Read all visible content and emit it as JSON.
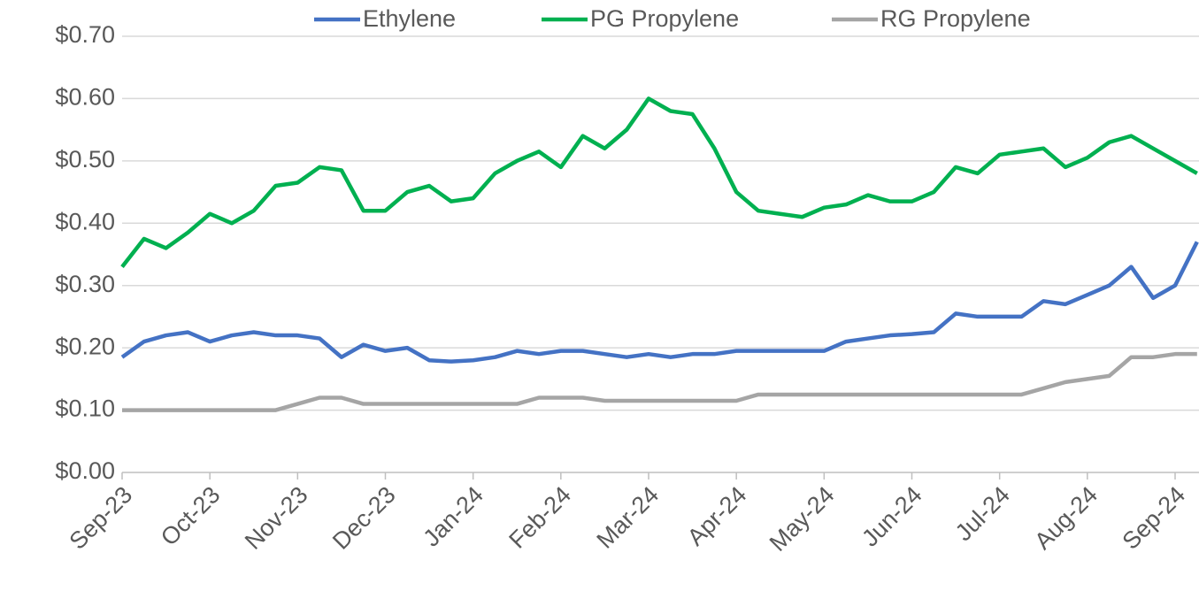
{
  "chart_data": {
    "type": "line",
    "categories": [
      "Sep-23",
      null,
      null,
      null,
      "Oct-23",
      null,
      null,
      null,
      "Nov-23",
      null,
      null,
      null,
      "Dec-23",
      null,
      null,
      null,
      "Jan-24",
      null,
      null,
      null,
      "Feb-24",
      null,
      null,
      null,
      "Mar-24",
      null,
      null,
      null,
      "Apr-24",
      null,
      null,
      null,
      "May-24",
      null,
      null,
      null,
      "Jun-24",
      null,
      null,
      null,
      "Jul-24",
      null,
      null,
      null,
      "Aug-24",
      null,
      null,
      null,
      "Sep-24",
      null
    ],
    "series": [
      {
        "name": "Ethylene",
        "color": "#4472c4",
        "values": [
          0.185,
          0.21,
          0.22,
          0.225,
          0.21,
          0.22,
          0.225,
          0.22,
          0.22,
          0.215,
          0.185,
          0.205,
          0.195,
          0.2,
          0.18,
          0.178,
          0.18,
          0.185,
          0.195,
          0.19,
          0.195,
          0.195,
          0.19,
          0.185,
          0.19,
          0.185,
          0.19,
          0.19,
          0.195,
          0.195,
          0.195,
          0.195,
          0.195,
          0.21,
          0.215,
          0.22,
          0.222,
          0.225,
          0.255,
          0.25,
          0.25,
          0.25,
          0.275,
          0.27,
          0.285,
          0.3,
          0.33,
          0.28,
          0.3,
          0.37
        ]
      },
      {
        "name": "PG Propylene",
        "color": "#00b050",
        "values": [
          0.33,
          0.375,
          0.36,
          0.385,
          0.415,
          0.4,
          0.42,
          0.46,
          0.465,
          0.49,
          0.485,
          0.42,
          0.42,
          0.45,
          0.46,
          0.435,
          0.44,
          0.48,
          0.5,
          0.515,
          0.49,
          0.54,
          0.52,
          0.55,
          0.6,
          0.58,
          0.575,
          0.52,
          0.45,
          0.42,
          0.415,
          0.41,
          0.425,
          0.43,
          0.445,
          0.435,
          0.435,
          0.45,
          0.49,
          0.48,
          0.51,
          0.515,
          0.52,
          0.49,
          0.505,
          0.53,
          0.54,
          0.52,
          0.5,
          0.48
        ]
      },
      {
        "name": "RG Propylene",
        "color": "#a5a5a5",
        "values": [
          0.1,
          0.1,
          0.1,
          0.1,
          0.1,
          0.1,
          0.1,
          0.1,
          0.11,
          0.12,
          0.12,
          0.11,
          0.11,
          0.11,
          0.11,
          0.11,
          0.11,
          0.11,
          0.11,
          0.12,
          0.12,
          0.12,
          0.115,
          0.115,
          0.115,
          0.115,
          0.115,
          0.115,
          0.115,
          0.125,
          0.125,
          0.125,
          0.125,
          0.125,
          0.125,
          0.125,
          0.125,
          0.125,
          0.125,
          0.125,
          0.125,
          0.125,
          0.135,
          0.145,
          0.15,
          0.155,
          0.185,
          0.185,
          0.19,
          0.19
        ]
      }
    ],
    "ylim": [
      0,
      0.7
    ],
    "yticks": [
      {
        "value": 0,
        "label": "$0.00"
      },
      {
        "value": 0.1,
        "label": "$0.10"
      },
      {
        "value": 0.2,
        "label": "$0.20"
      },
      {
        "value": 0.3,
        "label": "$0.30"
      },
      {
        "value": 0.4,
        "label": "$0.40"
      },
      {
        "value": 0.5,
        "label": "$0.50"
      },
      {
        "value": 0.6,
        "label": "$0.60"
      },
      {
        "value": 0.7,
        "label": "$0.70"
      }
    ],
    "grid": true,
    "legend": "top"
  }
}
